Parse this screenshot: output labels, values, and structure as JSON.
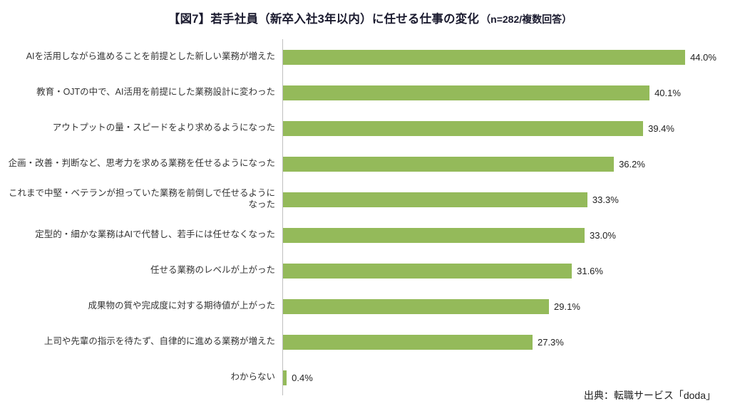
{
  "title": {
    "main": "【図7】若手社員（新卒入社3年以内）に任せる仕事の変化",
    "note": "（n=282/複数回答）"
  },
  "source": "出典：転職サービス「doda」",
  "chart_data": {
    "type": "bar",
    "orientation": "horizontal",
    "title": "【図7】若手社員（新卒入社3年以内）に任せる仕事の変化（n=282/複数回答）",
    "categories": [
      "AIを活用しながら進めることを前提とした新しい業務が増えた",
      "教育・OJTの中で、AI活用を前提にした業務設計に変わった",
      "アウトプットの量・スピードをより求めるようになった",
      "企画・改善・判断など、思考力を求める業務を任せるようになった",
      "これまで中堅・ベテランが担っていた業務を前倒しで任せるようになった",
      "定型的・細かな業務はAIで代替し、若手には任せなくなった",
      "任せる業務のレベルが上がった",
      "成果物の質や完成度に対する期待値が上がった",
      "上司や先輩の指示を待たず、自律的に進める業務が増えた",
      "わからない"
    ],
    "values": [
      44.0,
      40.1,
      39.4,
      36.2,
      33.3,
      33.0,
      31.6,
      29.1,
      27.3,
      0.4
    ],
    "value_labels": [
      "44.0%",
      "40.1%",
      "39.4%",
      "36.2%",
      "33.3%",
      "33.0%",
      "31.6%",
      "29.1%",
      "27.3%",
      "0.4%"
    ],
    "bar_color": "#94ba5a",
    "axis_line_color": "#bfbfbf",
    "xlim": [
      0,
      50
    ],
    "grid": false,
    "legend": false,
    "unit": "%"
  }
}
